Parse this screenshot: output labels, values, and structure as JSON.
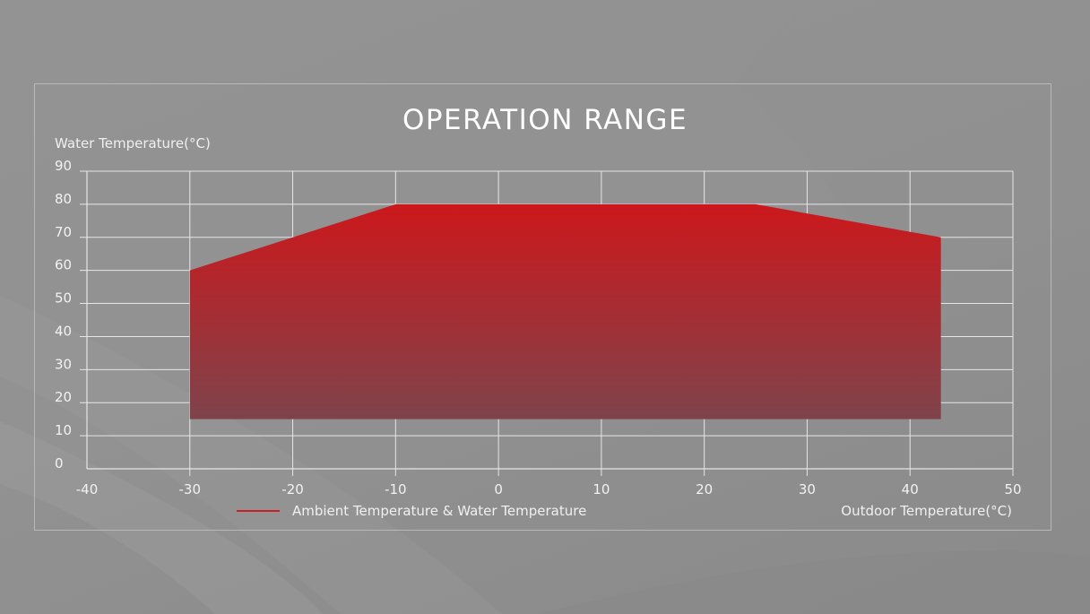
{
  "title": "OPERATION RANGE",
  "y_axis_label": "Water Temperature(°C)",
  "x_axis_label": "Outdoor Temperature(°C)",
  "legend": {
    "label": "Ambient Temperature & Water Temperature",
    "color": "#c81e24"
  },
  "colors": {
    "fill_top": "#cc181c",
    "fill_bottom": "#7f434b",
    "grid": "#e6e6e6",
    "background": "#929292"
  },
  "chart_data": {
    "type": "area",
    "title": "OPERATION RANGE",
    "xlabel": "Outdoor Temperature(°C)",
    "ylabel": "Water Temperature(°C)",
    "xlim": [
      -40,
      50
    ],
    "ylim": [
      0,
      90
    ],
    "x_ticks": [
      -40,
      -30,
      -20,
      -10,
      0,
      10,
      20,
      30,
      40,
      50
    ],
    "y_ticks": [
      0,
      10,
      20,
      30,
      40,
      50,
      60,
      70,
      80,
      90
    ],
    "grid": true,
    "legend_position": "bottom-left",
    "series": [
      {
        "name": "Ambient Temperature & Water Temperature",
        "polygon": [
          {
            "x": -30,
            "y": 15
          },
          {
            "x": -30,
            "y": 60
          },
          {
            "x": -10,
            "y": 80
          },
          {
            "x": 25,
            "y": 80
          },
          {
            "x": 43,
            "y": 70
          },
          {
            "x": 43,
            "y": 15
          }
        ],
        "upper_boundary": {
          "x": [
            -30,
            -10,
            25,
            43
          ],
          "y": [
            60,
            80,
            80,
            70
          ]
        },
        "lower_boundary": {
          "x": [
            -30,
            43
          ],
          "y": [
            15,
            15
          ]
        }
      }
    ]
  }
}
